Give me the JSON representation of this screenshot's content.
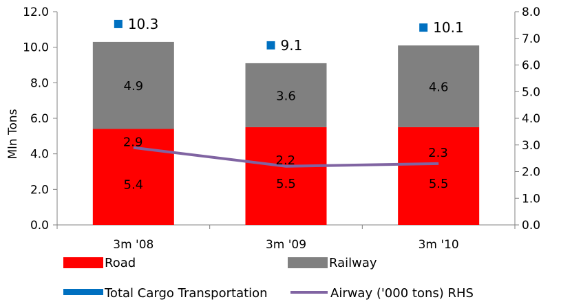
{
  "chart_data": {
    "type": "bar",
    "stacked": true,
    "categories": [
      "3m '08",
      "3m '09",
      "3m '10"
    ],
    "series": [
      {
        "name": "Road",
        "values": [
          5.4,
          5.5,
          5.5
        ],
        "color": "#ff0000",
        "kind": "bar",
        "labels": [
          "5.4",
          "5.5",
          "5.5"
        ]
      },
      {
        "name": "Railway",
        "values": [
          4.9,
          3.6,
          4.6
        ],
        "color": "#808080",
        "kind": "bar",
        "labels": [
          "4.9",
          "3.6",
          "4.6"
        ]
      },
      {
        "name": "Total Cargo Transportation",
        "values": [
          10.3,
          9.1,
          10.1
        ],
        "color": "#0070c0",
        "kind": "marker",
        "labels": [
          "10.3",
          "9.1",
          "10.1"
        ]
      },
      {
        "name": "Airway ('000 tons) RHS",
        "values": [
          2.9,
          2.2,
          2.3
        ],
        "color": "#8064a2",
        "kind": "line",
        "axis": "right",
        "labels": [
          "2.9",
          "2.2",
          "2.3"
        ]
      }
    ],
    "ylabel": "Mln Tons",
    "ylim": [
      0,
      12
    ],
    "yticks": [
      "0.0",
      "2.0",
      "4.0",
      "6.0",
      "8.0",
      "10.0",
      "12.0"
    ],
    "y2lim": [
      0,
      8
    ],
    "y2ticks": [
      "0.0",
      "1.0",
      "2.0",
      "3.0",
      "4.0",
      "5.0",
      "6.0",
      "7.0",
      "8.0"
    ],
    "grid": false,
    "legend": "bottom"
  }
}
